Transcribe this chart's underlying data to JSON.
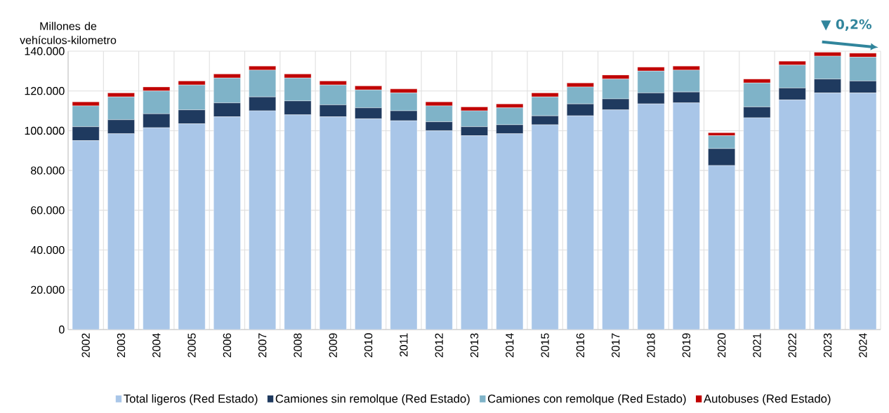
{
  "chart_data": {
    "type": "bar",
    "stacked": true,
    "ylabel": "Millones de vehículos-kilometro",
    "categories": [
      "2002",
      "2003",
      "2004",
      "2005",
      "2006",
      "2007",
      "2008",
      "2009",
      "2010",
      "2011",
      "2012",
      "2013",
      "2014",
      "2015",
      "2016",
      "2017",
      "2018",
      "2019",
      "2020",
      "2021",
      "2022",
      "2023",
      "2024"
    ],
    "series": [
      {
        "name": "Total ligeros (Red Estado)",
        "color": "#a9c6e8",
        "values": [
          95000,
          98500,
          101500,
          103500,
          107000,
          110000,
          108000,
          107000,
          106000,
          105000,
          100000,
          97500,
          98500,
          103000,
          107500,
          110500,
          113500,
          114000,
          82500,
          106500,
          115500,
          119000,
          119000
        ]
      },
      {
        "name": "Camiones sin remolque (Red Estado)",
        "color": "#1f3a5f",
        "values": [
          7000,
          7000,
          7000,
          7000,
          7000,
          7000,
          7000,
          6000,
          5500,
          5000,
          4500,
          4500,
          4500,
          4500,
          6000,
          5500,
          5500,
          5500,
          8500,
          5500,
          6000,
          7000,
          6000
        ]
      },
      {
        "name": "Camiones con remolque (Red Estado)",
        "color": "#7fb3c8",
        "values": [
          10500,
          11500,
          11500,
          12500,
          12500,
          13500,
          11500,
          10000,
          9000,
          9000,
          8000,
          8000,
          8500,
          9500,
          8500,
          10000,
          11000,
          11000,
          6500,
          12000,
          11500,
          11500,
          12000
        ]
      },
      {
        "name": "Autobuses (Red Estado)",
        "color": "#c00000",
        "values": [
          2000,
          2000,
          2000,
          2000,
          2000,
          2000,
          2000,
          2000,
          2000,
          2000,
          2000,
          2000,
          2000,
          2000,
          2000,
          2000,
          2000,
          2000,
          1500,
          2000,
          2000,
          2000,
          2000
        ]
      }
    ],
    "ylim": [
      0,
      140000
    ],
    "yticks": [
      0,
      {
        "value": 20000,
        "label": "20.000"
      },
      {
        "value": 40000,
        "label": "40.000"
      },
      {
        "value": 60000,
        "label": "60.000"
      },
      {
        "value": 80000,
        "label": "80.000"
      },
      {
        "value": 100000,
        "label": "100.000"
      },
      {
        "value": 120000,
        "label": "120.000"
      },
      {
        "value": 140000,
        "label": "140.000"
      }
    ],
    "grid": true,
    "legend": "bottom",
    "annotations": [
      "▼ 0,2%"
    ]
  }
}
